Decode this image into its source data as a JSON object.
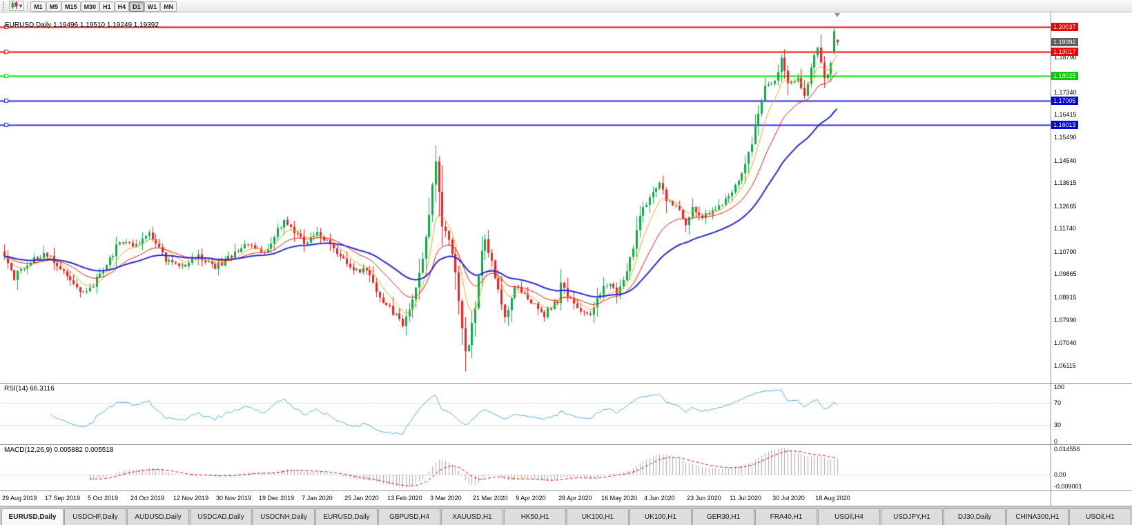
{
  "toolbar": {
    "timeframes": [
      "M1",
      "M5",
      "M15",
      "M30",
      "H1",
      "H4",
      "D1",
      "W1",
      "MN"
    ],
    "active_timeframe": "D1",
    "caret_glyph": "▾"
  },
  "chart": {
    "header": "EURUSD,Daily 1.19496 1.19510 1.19249 1.19392",
    "symbol": "EURUSD",
    "period": "Daily",
    "ohlc": {
      "open": "1.19496",
      "high": "1.19510",
      "low": "1.19249",
      "close": "1.19392"
    }
  },
  "price_axis": {
    "ticks": [
      "1.18790",
      "1.17340",
      "1.16415",
      "1.15490",
      "1.14540",
      "1.13615",
      "1.12665",
      "1.11740",
      "1.10790",
      "1.09865",
      "1.08915",
      "1.07990",
      "1.07040",
      "1.06115"
    ],
    "level_labels": [
      {
        "text": "1.20037",
        "bg": "#f20000"
      },
      {
        "text": "1.19017",
        "bg": "#f20000"
      },
      {
        "text": "1.18025",
        "bg": "#00ce00"
      },
      {
        "text": "1.17005",
        "bg": "#0000e8"
      },
      {
        "text": "1.16013",
        "bg": "#0000e8"
      }
    ],
    "current_label": {
      "text": "1.19392",
      "bg": "#5d5d5d"
    }
  },
  "rsi": {
    "label": "RSI(14) 66.3116",
    "value": "66.3116",
    "axis": [
      "100",
      "70",
      "30",
      "0"
    ]
  },
  "macd": {
    "label": "MACD(12,26,9) 0.005882 0.005518",
    "values": [
      "0.005882",
      "0.005518"
    ],
    "axis": [
      "0.014556",
      "0.00",
      "-0.009001"
    ]
  },
  "date_axis": [
    "29 Aug 2019",
    "17 Sep 2019",
    "5 Oct 2019",
    "24 Oct 2019",
    "12 Nov 2019",
    "30 Nov 2019",
    "19 Dec 2019",
    "7 Jan 2020",
    "25 Jan 2020",
    "13 Feb 2020",
    "3 Mar 2020",
    "21 Mar 2020",
    "9 Apr 2020",
    "28 Apr 2020",
    "16 May 2020",
    "4 Jun 2020",
    "23 Jun 2020",
    "11 Jul 2020",
    "30 Jul 2020",
    "18 Aug 2020"
  ],
  "tabs": {
    "active_index": 0,
    "items": [
      "EURUSD,Daily",
      "USDCHF,Daily",
      "AUDUSD,Daily",
      "USDCAD,Daily",
      "USDCNH,Daily",
      "EURUSD,Daily",
      "GBPUSD,H4",
      "XAUUSD,H1",
      "HK50,H1",
      "UK100,H1",
      "UK100,H1",
      "GER30,H1",
      "FRA40,H1",
      "USOil,H4",
      "USDJPY,H1",
      "DJ30,Daily",
      "CHINA300,H1",
      "USOil,H1"
    ]
  },
  "chart_data": {
    "type": "candlestick",
    "symbol": "EURUSD",
    "timeframe": "Daily",
    "bar_count": 254,
    "bars_per_label": 13,
    "x0": 6,
    "bar_spacing": 4.77,
    "y_range": [
      1.054,
      1.2062
    ],
    "up_color": "#0caa43",
    "down_color": "#f21d1d",
    "last_bar": {
      "open": 1.19496,
      "high": 1.1951,
      "low": 1.19249,
      "close": 1.19392
    },
    "prev_bar": {
      "open": 1.1898,
      "high": 1.2002,
      "low": 1.1888,
      "close": 1.1985
    },
    "anchors": [
      [
        0,
        1.106
      ],
      [
        3,
        1.0975
      ],
      [
        8,
        1.104
      ],
      [
        13,
        1.107
      ],
      [
        18,
        1.0995
      ],
      [
        23,
        1.0905
      ],
      [
        26,
        1.093
      ],
      [
        30,
        1.1
      ],
      [
        35,
        1.112
      ],
      [
        39,
        1.1105
      ],
      [
        44,
        1.115
      ],
      [
        49,
        1.105
      ],
      [
        54,
        1.102
      ],
      [
        59,
        1.106
      ],
      [
        64,
        1.1015
      ],
      [
        69,
        1.106
      ],
      [
        74,
        1.112
      ],
      [
        79,
        1.108
      ],
      [
        85,
        1.121
      ],
      [
        88,
        1.116
      ],
      [
        91,
        1.112
      ],
      [
        95,
        1.115
      ],
      [
        100,
        1.1095
      ],
      [
        105,
        1.101
      ],
      [
        110,
        1.1
      ],
      [
        115,
        1.0875
      ],
      [
        121,
        1.0785
      ],
      [
        124,
        1.088
      ],
      [
        127,
        1.105
      ],
      [
        129,
        1.124
      ],
      [
        131,
        1.145
      ],
      [
        133,
        1.118
      ],
      [
        135,
        1.114
      ],
      [
        137,
        1.0995
      ],
      [
        140,
        1.066
      ],
      [
        141,
        1.07
      ],
      [
        143,
        1.085
      ],
      [
        145,
        1.109
      ],
      [
        146,
        1.114
      ],
      [
        148,
        1.103
      ],
      [
        150,
        1.092
      ],
      [
        152,
        1.08
      ],
      [
        155,
        1.093
      ],
      [
        160,
        1.087
      ],
      [
        164,
        1.082
      ],
      [
        168,
        1.088
      ],
      [
        169,
        1.0955
      ],
      [
        171,
        1.0905
      ],
      [
        174,
        1.0835
      ],
      [
        178,
        1.081
      ],
      [
        181,
        1.0915
      ],
      [
        184,
        1.095
      ],
      [
        186,
        1.09
      ],
      [
        189,
        1.1
      ],
      [
        191,
        1.11
      ],
      [
        193,
        1.1234
      ],
      [
        196,
        1.13
      ],
      [
        199,
        1.1374
      ],
      [
        201,
        1.1297
      ],
      [
        204,
        1.1264
      ],
      [
        207,
        1.12
      ],
      [
        209,
        1.126
      ],
      [
        212,
        1.122
      ],
      [
        214,
        1.1234
      ],
      [
        216,
        1.125
      ],
      [
        220,
        1.13
      ],
      [
        224,
        1.14
      ],
      [
        227,
        1.1525
      ],
      [
        229,
        1.1656
      ],
      [
        231,
        1.1755
      ],
      [
        234,
        1.1778
      ],
      [
        236,
        1.187
      ],
      [
        238,
        1.178
      ],
      [
        241,
        1.179
      ],
      [
        243,
        1.172
      ],
      [
        245,
        1.184
      ],
      [
        247,
        1.193
      ],
      [
        249,
        1.179
      ],
      [
        251,
        1.185
      ],
      [
        253,
        1.19392
      ]
    ],
    "moving_averages": [
      {
        "type": "ema",
        "period": 7,
        "color": "#f7a21b",
        "width": 1
      },
      {
        "type": "ema",
        "period": 18,
        "color": "#ee1111",
        "width": 1
      },
      {
        "type": "ema",
        "period": 40,
        "color": "#2525d8",
        "width": 2
      }
    ],
    "levels": [
      {
        "value": 1.20037,
        "color": "#f20000",
        "width": 2
      },
      {
        "value": 1.19017,
        "color": "#f20000",
        "width": 2
      },
      {
        "value": 1.18025,
        "color": "#00e400",
        "width": 2
      },
      {
        "value": 1.17005,
        "color": "#2222ee",
        "width": 2
      },
      {
        "value": 1.16013,
        "color": "#2222ee",
        "width": 2
      }
    ],
    "indicators": {
      "rsi": {
        "period": 14,
        "color": "#58a8d8",
        "guide_levels": [
          30,
          70
        ],
        "range": [
          0,
          100
        ]
      },
      "macd": {
        "fast": 12,
        "slow": 26,
        "signal": 9,
        "hist_color": "#a8a8a8",
        "signal_color": "#e00000"
      }
    }
  }
}
